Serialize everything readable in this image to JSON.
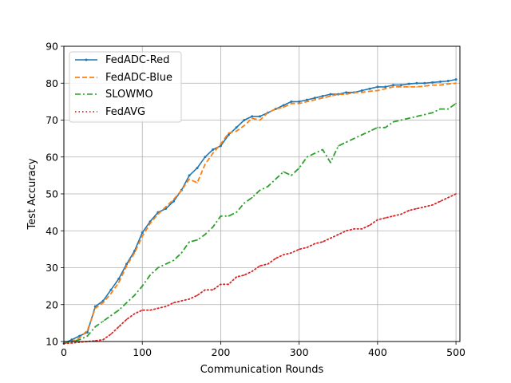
{
  "chart_data": {
    "type": "line",
    "xlabel": "Communication Rounds",
    "ylabel": "Test Accuracy",
    "xlim": [
      0,
      505
    ],
    "ylim": [
      10,
      90
    ],
    "xticks": [
      0,
      100,
      200,
      300,
      400,
      500
    ],
    "yticks": [
      10,
      20,
      30,
      40,
      50,
      60,
      70,
      80,
      90
    ],
    "grid": true,
    "legend_position": "top-left",
    "series": [
      {
        "name": "FedADC-Red",
        "color": "#1f77b4",
        "style": "solid-marker",
        "x": [
          0,
          10,
          20,
          30,
          40,
          50,
          60,
          70,
          80,
          90,
          100,
          110,
          120,
          130,
          140,
          150,
          160,
          170,
          180,
          190,
          200,
          210,
          220,
          230,
          240,
          250,
          260,
          270,
          280,
          290,
          300,
          310,
          320,
          330,
          340,
          350,
          360,
          370,
          380,
          390,
          400,
          410,
          420,
          430,
          440,
          450,
          460,
          470,
          480,
          490,
          500
        ],
        "values": [
          9.5,
          10.5,
          11.5,
          12.5,
          19.5,
          21.0,
          24.0,
          27.0,
          31.0,
          34.5,
          39.5,
          42.5,
          45.0,
          46.0,
          48.0,
          51.0,
          55.0,
          57.0,
          60.0,
          62.0,
          63.0,
          66.0,
          68.0,
          70.0,
          71.0,
          71.0,
          72.0,
          73.0,
          74.0,
          75.0,
          75.0,
          75.5,
          76.0,
          76.5,
          77.0,
          77.0,
          77.5,
          77.5,
          78.0,
          78.5,
          79.0,
          79.0,
          79.5,
          79.5,
          79.8,
          80.0,
          80.0,
          80.2,
          80.4,
          80.6,
          81.0
        ]
      },
      {
        "name": "FedADC-Blue",
        "color": "#ff7f0e",
        "style": "dashed",
        "x": [
          0,
          10,
          20,
          30,
          40,
          50,
          60,
          70,
          80,
          90,
          100,
          110,
          120,
          130,
          140,
          150,
          160,
          170,
          180,
          190,
          200,
          210,
          220,
          230,
          240,
          250,
          260,
          270,
          280,
          290,
          300,
          310,
          320,
          330,
          340,
          350,
          360,
          370,
          380,
          390,
          400,
          410,
          420,
          430,
          440,
          450,
          460,
          470,
          480,
          490,
          500
        ],
        "values": [
          9.5,
          10.0,
          11.0,
          13.0,
          19.0,
          20.5,
          23.0,
          26.0,
          30.5,
          34.0,
          38.5,
          42.0,
          44.5,
          46.5,
          48.5,
          51.0,
          54.0,
          53.0,
          58.0,
          61.0,
          63.5,
          66.5,
          67.0,
          68.5,
          70.5,
          70.0,
          72.0,
          73.0,
          73.5,
          74.5,
          74.5,
          75.0,
          75.5,
          76.0,
          76.5,
          77.0,
          77.0,
          77.5,
          77.5,
          77.8,
          78.0,
          78.5,
          79.0,
          79.0,
          79.0,
          79.0,
          79.2,
          79.5,
          79.5,
          79.8,
          80.0
        ]
      },
      {
        "name": "SLOWMO",
        "color": "#2ca02c",
        "style": "dashdot",
        "x": [
          0,
          10,
          20,
          30,
          40,
          50,
          60,
          70,
          80,
          90,
          100,
          110,
          120,
          130,
          140,
          150,
          160,
          170,
          180,
          190,
          200,
          210,
          220,
          230,
          240,
          250,
          260,
          270,
          280,
          290,
          300,
          310,
          320,
          330,
          340,
          350,
          360,
          370,
          380,
          390,
          400,
          410,
          420,
          430,
          440,
          450,
          460,
          470,
          480,
          490,
          500
        ],
        "values": [
          9.5,
          10.0,
          10.5,
          11.5,
          14.0,
          15.5,
          17.0,
          18.5,
          20.5,
          22.5,
          25.0,
          28.0,
          30.0,
          31.0,
          32.0,
          34.0,
          37.0,
          37.5,
          39.0,
          41.0,
          44.0,
          44.0,
          45.0,
          47.5,
          49.0,
          51.0,
          52.0,
          54.0,
          56.0,
          55.0,
          57.0,
          60.0,
          61.0,
          62.0,
          58.5,
          63.0,
          64.0,
          65.0,
          66.0,
          67.0,
          68.0,
          68.0,
          69.5,
          70.0,
          70.5,
          71.0,
          71.5,
          72.0,
          73.0,
          73.0,
          74.5
        ]
      },
      {
        "name": "FedAVG",
        "color": "#d62728",
        "style": "dotted",
        "x": [
          0,
          10,
          20,
          30,
          40,
          50,
          60,
          70,
          80,
          90,
          100,
          110,
          120,
          130,
          140,
          150,
          160,
          170,
          180,
          190,
          200,
          210,
          220,
          230,
          240,
          250,
          260,
          270,
          280,
          290,
          300,
          310,
          320,
          330,
          340,
          350,
          360,
          370,
          380,
          390,
          400,
          410,
          420,
          430,
          440,
          450,
          460,
          470,
          480,
          490,
          500
        ],
        "values": [
          9.5,
          9.6,
          9.8,
          10.0,
          10.2,
          10.5,
          12.0,
          14.0,
          16.0,
          17.5,
          18.5,
          18.5,
          19.0,
          19.5,
          20.5,
          21.0,
          21.5,
          22.5,
          24.0,
          24.0,
          25.5,
          25.5,
          27.5,
          28.0,
          29.0,
          30.5,
          31.0,
          32.5,
          33.5,
          34.0,
          35.0,
          35.5,
          36.5,
          37.0,
          38.0,
          39.0,
          40.0,
          40.5,
          40.5,
          41.5,
          43.0,
          43.5,
          44.0,
          44.5,
          45.5,
          46.0,
          46.5,
          47.0,
          48.0,
          49.0,
          50.0
        ]
      }
    ]
  }
}
